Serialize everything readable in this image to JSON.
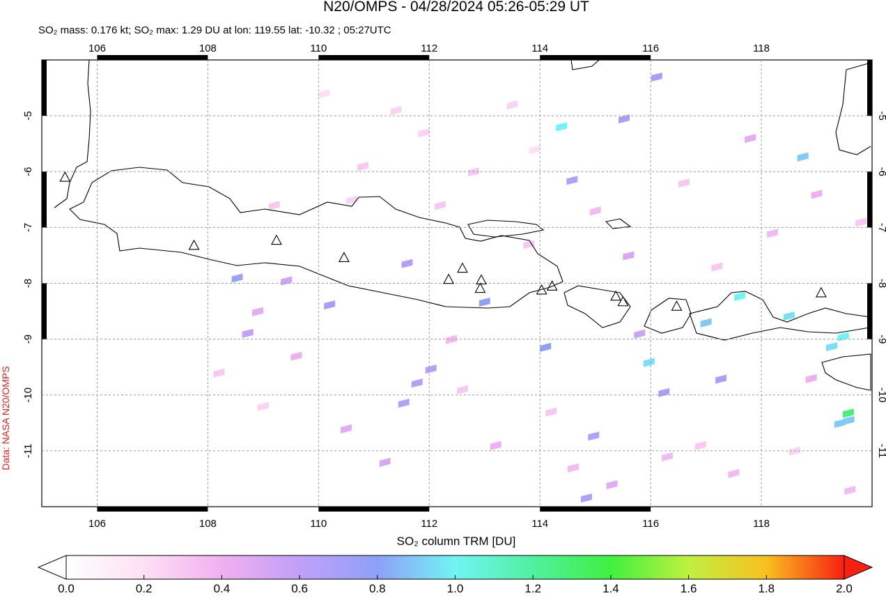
{
  "chart_data": {
    "type": "map",
    "title": "N20/OMPS - 04/28/2024 05:26-05:29 UT",
    "subtitle": "SO₂ mass: 0.176 kt; SO₂ max: 1.29 DU at lon: 119.55 lat: -10.32 ; 05:27UTC",
    "side_label": "Data: NASA N20/OMPS",
    "colorbar_label": "SO₂ column TRM [DU]",
    "xlim": [
      105,
      120
    ],
    "ylim": [
      -12,
      -4
    ],
    "xticks": [
      106,
      108,
      110,
      112,
      114,
      116,
      118
    ],
    "yticks": [
      -5,
      -6,
      -7,
      -8,
      -9,
      -10,
      -11
    ],
    "grid": true,
    "clim": [
      0,
      2
    ],
    "cticks": [
      {
        "value": 0,
        "label": "0.0"
      },
      0.2,
      0.4,
      0.6,
      0.8,
      {
        "value": 1,
        "label": "1.0"
      },
      1.2,
      1.4,
      1.6,
      1.8,
      {
        "value": 2,
        "label": "2.0"
      }
    ],
    "colormap": [
      "#ffffff",
      "#fde0f4",
      "#f0b0f0",
      "#c0a0f8",
      "#8fa0f8",
      "#70f4f4",
      "#50f0a0",
      "#40f040",
      "#c0f040",
      "#f8c020",
      "#f82010"
    ],
    "pixels": {
      "lon": [
        114.39,
        119.57,
        117.61,
        108.53,
        110.2,
        111.6,
        113.0,
        111.54,
        112.03,
        111.78,
        114.58,
        114.1,
        115.97,
        117.0,
        119.27,
        119.48,
        119.58,
        119.42,
        118.75,
        118.5,
        116.11,
        115.52,
        114.97,
        114.84,
        117.27,
        116.24,
        108.72,
        109.42,
        108.9,
        109.6,
        110.5,
        111.2,
        112.4,
        113.2,
        113.8,
        115.0,
        115.6,
        116.6,
        117.8,
        118.2,
        119.0,
        119.8,
        108.2,
        109.0,
        110.8,
        111.9,
        112.8,
        113.5,
        114.6,
        115.3,
        116.9,
        117.5,
        118.9,
        110.1,
        111.4,
        112.2,
        113.9,
        115.8,
        117.2,
        118.6,
        119.6,
        109.2,
        110.6,
        112.6,
        114.2,
        116.3
      ],
      "lat": [
        -5.19,
        -10.32,
        -8.23,
        -7.9,
        -8.38,
        -7.64,
        -8.33,
        -10.14,
        -9.53,
        -9.78,
        -6.15,
        -9.14,
        -9.41,
        -8.7,
        -9.13,
        -8.95,
        -10.45,
        -10.5,
        -5.73,
        -8.58,
        -4.3,
        -5.05,
        -10.73,
        -11.84,
        -9.71,
        -9.95,
        -8.89,
        -7.95,
        -8.5,
        -9.3,
        -10.6,
        -11.2,
        -9.0,
        -10.9,
        -7.3,
        -6.7,
        -7.5,
        -6.2,
        -5.4,
        -7.1,
        -6.4,
        -6.9,
        -9.6,
        -10.2,
        -5.9,
        -5.3,
        -6.0,
        -4.8,
        -11.3,
        -11.6,
        -10.9,
        -11.4,
        -9.7,
        -4.6,
        -4.9,
        -6.6,
        -5.6,
        -8.9,
        -7.7,
        -11.0,
        -11.7,
        -6.6,
        -6.5,
        -9.9,
        -10.3,
        -11.1
      ],
      "values": [
        1.0,
        1.29,
        1.0,
        0.75,
        0.7,
        0.65,
        0.8,
        0.65,
        0.65,
        0.65,
        0.65,
        0.8,
        0.95,
        0.9,
        0.95,
        1.0,
        0.9,
        0.9,
        0.9,
        0.95,
        0.7,
        0.7,
        0.65,
        0.65,
        0.7,
        0.7,
        0.6,
        0.55,
        0.45,
        0.4,
        0.45,
        0.5,
        0.35,
        0.4,
        0.3,
        0.35,
        0.5,
        0.3,
        0.45,
        0.35,
        0.4,
        0.3,
        0.3,
        0.25,
        0.3,
        0.25,
        0.3,
        0.25,
        0.35,
        0.45,
        0.3,
        0.35,
        0.4,
        0.2,
        0.25,
        0.3,
        0.2,
        0.55,
        0.3,
        0.25,
        0.35,
        0.3,
        0.25,
        0.3,
        0.3,
        0.35
      ]
    },
    "volcanoes": {
      "lon": [
        107.75,
        109.24,
        110.46,
        112.35,
        112.6,
        112.94,
        112.92,
        114.03,
        114.22,
        115.37,
        115.5,
        116.47,
        119.08,
        105.42
      ],
      "lat": [
        -7.33,
        -7.24,
        -7.55,
        -7.94,
        -7.74,
        -7.95,
        -8.1,
        -8.13,
        -8.06,
        -8.24,
        -8.34,
        -8.42,
        -8.18,
        -6.11
      ]
    }
  }
}
